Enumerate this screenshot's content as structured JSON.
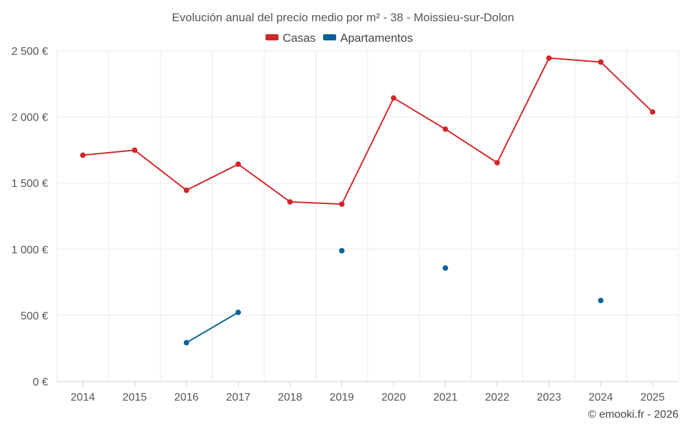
{
  "chart_data": {
    "type": "line",
    "title": "Evolución anual del precio medio por m² - 38 - Moissieu-sur-Dolon",
    "categories": [
      "2014",
      "2015",
      "2016",
      "2017",
      "2018",
      "2019",
      "2020",
      "2021",
      "2022",
      "2023",
      "2024",
      "2025"
    ],
    "series": [
      {
        "name": "Casas",
        "color": "#d32626",
        "values": [
          1710,
          1748,
          1445,
          1642,
          1357,
          1340,
          2142,
          1907,
          1653,
          2444,
          2414,
          2037
        ]
      },
      {
        "name": "Apartamentos",
        "color": "#0a6398",
        "values": [
          null,
          null,
          293,
          522,
          null,
          988,
          null,
          857,
          null,
          null,
          612,
          null
        ]
      }
    ],
    "ylim": [
      0,
      2500
    ],
    "yticks": [
      0,
      500,
      1000,
      1500,
      2000,
      2500
    ],
    "ytick_labels": [
      "0 €",
      "500 €",
      "1 000 €",
      "1 500 €",
      "2 000 €",
      "2 500 €"
    ],
    "xlabel": "",
    "ylabel": "",
    "legend_position": "top-center",
    "grid": true
  },
  "credit": "© emooki.fr - 2026"
}
